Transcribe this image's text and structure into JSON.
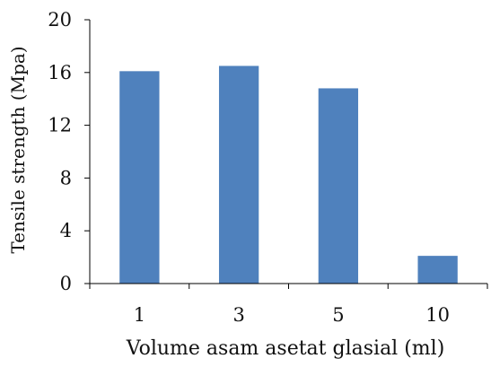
{
  "chart_data": {
    "type": "bar",
    "title": "",
    "xlabel": "Volume asam asetat glasial (ml)",
    "ylabel": "Tensile strength (Mpa)",
    "categories": [
      "1",
      "3",
      "5",
      "10"
    ],
    "values": [
      16.1,
      16.5,
      14.8,
      2.1
    ],
    "ylim": [
      0,
      20
    ],
    "yticks": [
      0,
      4,
      8,
      12,
      16,
      20
    ],
    "grid": false,
    "legend": "none",
    "bar_color": "#4f81bd",
    "axis_color": "#000000"
  }
}
